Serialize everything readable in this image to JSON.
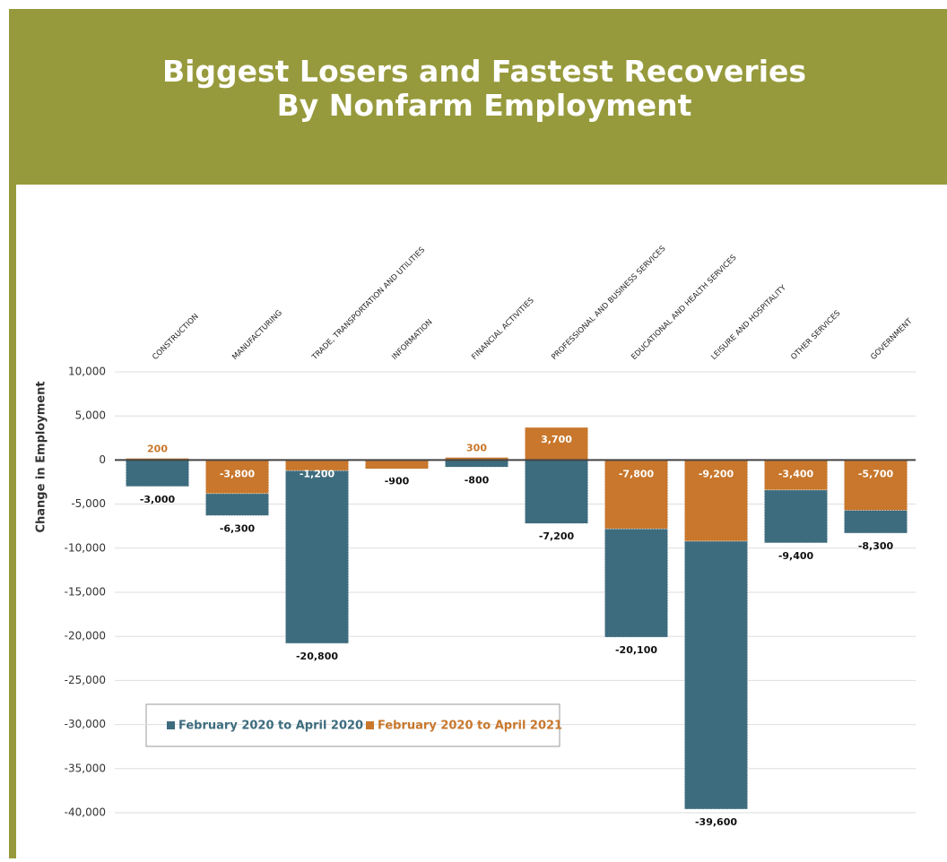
{
  "chart_data": {
    "type": "bar",
    "title": "Biggest Losers and Fastest Recoveries\nBy Nonfarm Employment",
    "y_label": "Change in Employment",
    "categories": [
      "CONSTRUCTION",
      "MANUFACTURING",
      "TRADE, TRANSPORTATION AND UTILITIES",
      "INFORMATION",
      "FINANCIAL ACTIVITIES",
      "PROFESSIONAL AND BUSINESS SERVICES",
      "EDUCATIONAL AND HEALTH SERVICES",
      "LEISURE AND HOSPITALITY",
      "OTHER SERVICES",
      "GOVERNMENT"
    ],
    "series": [
      {
        "name": "February 2020 to April 2020",
        "color": "#3d6c7e",
        "values": [
          -3000,
          -6300,
          -20800,
          -900,
          -800,
          -7200,
          -20100,
          -39600,
          -9400,
          -8300
        ],
        "value_labels": [
          "-3,000",
          "-6,300",
          "-20,800",
          "-900",
          "-800",
          "-7,200",
          "-20,100",
          "-39,600",
          "-9,400",
          "-8,300"
        ]
      },
      {
        "name": "February 2020 to April 2021",
        "color": "#c8772c",
        "values": [
          200,
          -3800,
          -1200,
          -1000,
          300,
          3700,
          -7800,
          -9200,
          -3400,
          -5700
        ],
        "value_labels": [
          "200",
          "-3,800",
          "-1,200",
          "-1,000",
          "300",
          "3,700",
          "-7,800",
          "-9,200",
          "-3,400",
          "-5,700"
        ]
      }
    ],
    "ylim": [
      -40000,
      10000
    ],
    "yticks": [
      {
        "value": 10000,
        "label": "10,000"
      },
      {
        "value": 5000,
        "label": "5,000"
      },
      0,
      {
        "value": -5000,
        "label": "-5,000"
      },
      {
        "value": -10000,
        "label": "-10,000"
      },
      {
        "value": -15000,
        "label": "-15,000"
      },
      {
        "value": -20000,
        "label": "-20,000"
      },
      {
        "value": -25000,
        "label": "-25,000"
      },
      {
        "value": -30000,
        "label": "-30,000"
      },
      {
        "value": -35000,
        "label": "-35,000"
      },
      {
        "value": -40000,
        "label": "-40,000"
      }
    ],
    "grid": true,
    "legend": "bottom-left"
  }
}
